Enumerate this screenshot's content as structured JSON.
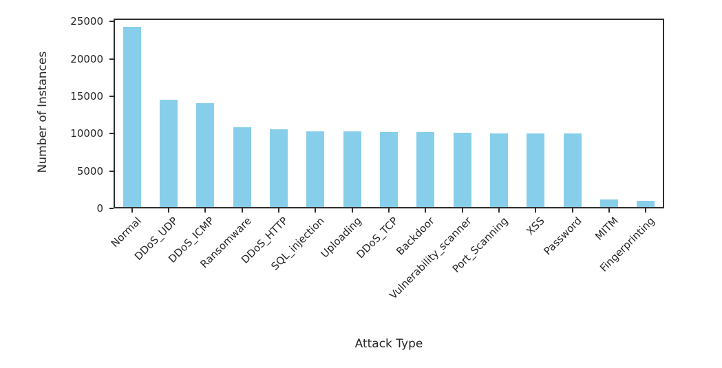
{
  "chart_data": {
    "type": "bar",
    "title": "",
    "xlabel": "Attack Type",
    "ylabel": "Number of Instances",
    "categories": [
      "Normal",
      "DDoS_UDP",
      "DDoS_ICMP",
      "Ransomware",
      "DDoS_HTTP",
      "SQL_injection",
      "Uploading",
      "DDoS_TCP",
      "Backdoor",
      "Vulnerability_scanner",
      "Port_Scanning",
      "XSS",
      "Password",
      "MITM",
      "Fingerprinting"
    ],
    "values": [
      24300,
      14500,
      14100,
      10900,
      10600,
      10300,
      10270,
      10250,
      10200,
      10080,
      10070,
      10050,
      10000,
      1200,
      1000
    ],
    "ylim": [
      0,
      25400
    ],
    "yticks": [
      0,
      5000,
      10000,
      15000,
      20000,
      25000
    ],
    "x_tick_rotation_deg": 45,
    "grid": false,
    "bar_color": "#87CEEB",
    "axis_color": "#2e2e2e",
    "tick_label_color": "#262626",
    "background_color": "#ffffff"
  }
}
